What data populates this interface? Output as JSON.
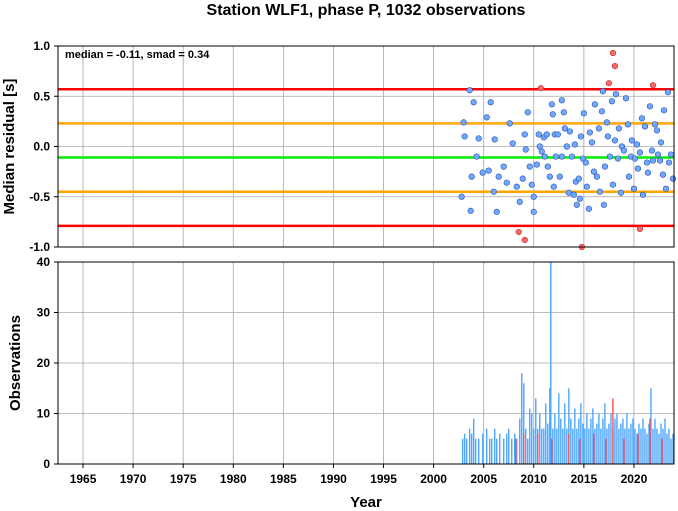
{
  "chart_data": [
    {
      "type": "scatter",
      "title": "Station WLF1, phase P, 1032 observations",
      "ylabel": "Median residual [s]",
      "annotation": "median = -0.11, smad = 0.34",
      "xlim": [
        1962.5,
        2024
      ],
      "ylim": [
        -1.0,
        1.0
      ],
      "yticks": [
        -1.0,
        -0.5,
        0.0,
        0.5,
        1.0
      ],
      "ytick_labels": [
        "-1.0",
        "-0.5",
        "0.0",
        "0.5",
        "1.0"
      ],
      "grid": true,
      "reference_lines": [
        {
          "name": "median",
          "y": -0.11,
          "color": "#00ee00"
        },
        {
          "name": "median + 1 smad",
          "y": 0.23,
          "color": "#ffa500"
        },
        {
          "name": "median - 1 smad",
          "y": -0.45,
          "color": "#ffa500"
        },
        {
          "name": "median + 2 smad",
          "y": 0.57,
          "color": "#ff0000"
        },
        {
          "name": "median - 2 smad",
          "y": -0.79,
          "color": "#ff0000"
        }
      ],
      "point_colors": {
        "within": "#6fa8ff",
        "outside": "#ff6666"
      },
      "points": [
        [
          2003.0,
          0.24
        ],
        [
          2003.1,
          0.1
        ],
        [
          2003.6,
          0.56
        ],
        [
          2003.8,
          -0.3
        ],
        [
          2004.0,
          0.44
        ],
        [
          2003.7,
          -0.64
        ],
        [
          2004.5,
          0.08
        ],
        [
          2004.9,
          -0.26
        ],
        [
          2005.3,
          0.29
        ],
        [
          2005.5,
          -0.24
        ],
        [
          2005.7,
          0.44
        ],
        [
          2006.0,
          -0.45
        ],
        [
          2006.1,
          0.07
        ],
        [
          2006.3,
          -0.65
        ],
        [
          2006.5,
          -0.3
        ],
        [
          2007.3,
          -0.36
        ],
        [
          2007.6,
          0.23
        ],
        [
          2007.9,
          0.03
        ],
        [
          2008.3,
          -0.4
        ],
        [
          2008.6,
          -0.55
        ],
        [
          2008.9,
          -0.32
        ],
        [
          2009.1,
          0.12
        ],
        [
          2009.2,
          -0.03
        ],
        [
          2009.6,
          -0.2
        ],
        [
          2009.8,
          -0.38
        ],
        [
          2010.0,
          -0.5
        ],
        [
          2010.0,
          -0.65
        ],
        [
          2010.3,
          -0.18
        ],
        [
          2010.5,
          0.12
        ],
        [
          2010.6,
          0.0
        ],
        [
          2010.8,
          -0.05
        ],
        [
          2011.0,
          0.09
        ],
        [
          2011.1,
          -0.1
        ],
        [
          2011.3,
          0.12
        ],
        [
          2011.4,
          -0.2
        ],
        [
          2011.6,
          -0.3
        ],
        [
          2011.8,
          0.42
        ],
        [
          2011.9,
          0.32
        ],
        [
          2012.1,
          0.12
        ],
        [
          2012.2,
          -0.1
        ],
        [
          2012.4,
          0.12
        ],
        [
          2012.6,
          -0.3
        ],
        [
          2012.8,
          0.46
        ],
        [
          2012.8,
          -0.1
        ],
        [
          2013.0,
          0.34
        ],
        [
          2013.1,
          0.18
        ],
        [
          2013.3,
          0.0
        ],
        [
          2013.5,
          -0.46
        ],
        [
          2013.6,
          0.15
        ],
        [
          2013.8,
          -0.1
        ],
        [
          2014.0,
          -0.48
        ],
        [
          2014.1,
          0.02
        ],
        [
          2014.2,
          -0.35
        ],
        [
          2014.3,
          -0.58
        ],
        [
          2014.5,
          -0.32
        ],
        [
          2014.6,
          -0.52
        ],
        [
          2014.7,
          0.1
        ],
        [
          2014.9,
          -0.12
        ],
        [
          2015.0,
          0.33
        ],
        [
          2015.2,
          -0.16
        ],
        [
          2015.3,
          -0.4
        ],
        [
          2015.5,
          -0.62
        ],
        [
          2015.6,
          0.14
        ],
        [
          2015.8,
          0.04
        ],
        [
          2016.0,
          -0.25
        ],
        [
          2016.1,
          0.42
        ],
        [
          2016.3,
          -0.3
        ],
        [
          2016.5,
          0.18
        ],
        [
          2016.6,
          -0.45
        ],
        [
          2016.8,
          0.35
        ],
        [
          2017.0,
          -0.58
        ],
        [
          2017.1,
          -0.2
        ],
        [
          2017.3,
          0.24
        ],
        [
          2017.4,
          0.1
        ],
        [
          2017.6,
          -0.1
        ],
        [
          2017.8,
          0.45
        ],
        [
          2017.9,
          -0.38
        ],
        [
          2018.1,
          0.06
        ],
        [
          2018.2,
          0.52
        ],
        [
          2018.4,
          -0.12
        ],
        [
          2018.5,
          0.18
        ],
        [
          2018.7,
          -0.46
        ],
        [
          2018.8,
          0.0
        ],
        [
          2019.0,
          -0.04
        ],
        [
          2019.2,
          0.48
        ],
        [
          2019.4,
          0.22
        ],
        [
          2019.5,
          -0.3
        ],
        [
          2019.7,
          -0.1
        ],
        [
          2019.8,
          0.06
        ],
        [
          2020.0,
          -0.42
        ],
        [
          2020.1,
          -0.12
        ],
        [
          2020.3,
          0.02
        ],
        [
          2020.4,
          -0.22
        ],
        [
          2020.6,
          -0.06
        ],
        [
          2020.8,
          0.28
        ],
        [
          2020.9,
          -0.48
        ],
        [
          2021.1,
          0.2
        ],
        [
          2021.3,
          -0.16
        ],
        [
          2021.4,
          -0.26
        ],
        [
          2021.6,
          0.4
        ],
        [
          2021.8,
          -0.04
        ],
        [
          2021.9,
          -0.14
        ],
        [
          2022.1,
          0.22
        ],
        [
          2022.3,
          0.16
        ],
        [
          2022.4,
          -0.08
        ],
        [
          2022.6,
          -0.14
        ],
        [
          2022.7,
          0.04
        ],
        [
          2022.9,
          -0.28
        ],
        [
          2023.0,
          0.36
        ],
        [
          2023.2,
          -0.42
        ],
        [
          2023.4,
          0.54
        ],
        [
          2023.5,
          -0.16
        ],
        [
          2023.7,
          -0.08
        ],
        [
          2023.9,
          -0.32
        ],
        [
          2002.8,
          -0.5
        ],
        [
          2004.3,
          -0.1
        ],
        [
          2007.0,
          -0.2
        ],
        [
          2009.4,
          0.34
        ],
        [
          2012.0,
          -0.4
        ],
        [
          2016.9,
          0.55
        ]
      ],
      "outliers": [
        [
          2010.7,
          0.58
        ],
        [
          2017.5,
          0.63
        ],
        [
          2017.9,
          0.93
        ],
        [
          2018.1,
          0.8
        ],
        [
          2021.9,
          0.61
        ],
        [
          2008.5,
          -0.85
        ],
        [
          2009.1,
          -0.93
        ],
        [
          2014.8,
          -1.0
        ],
        [
          2020.6,
          -0.82
        ]
      ]
    },
    {
      "type": "bar",
      "xlabel": "Year",
      "ylabel": "Observations",
      "xlim": [
        1962.5,
        2024
      ],
      "ylim": [
        0,
        40
      ],
      "xticks": [
        1965,
        1970,
        1975,
        1980,
        1985,
        1990,
        1995,
        2000,
        2005,
        2010,
        2015,
        2020
      ],
      "xtick_labels": [
        "1965",
        "1970",
        "1975",
        "1980",
        "1985",
        "1990",
        "1995",
        "2000",
        "2005",
        "2010",
        "2015",
        "2020"
      ],
      "yticks": [
        0,
        10,
        20,
        30,
        40
      ],
      "ytick_labels": [
        "0",
        "10",
        "20",
        "30",
        "40"
      ],
      "grid": true,
      "bar_colors": {
        "normal": "#4da6ff",
        "outlier": "#ff4d4d"
      },
      "bars": [
        [
          2002.9,
          5
        ],
        [
          2003.1,
          6
        ],
        [
          2003.3,
          5
        ],
        [
          2003.6,
          7
        ],
        [
          2003.8,
          6
        ],
        [
          2004.0,
          9
        ],
        [
          2004.2,
          5
        ],
        [
          2004.5,
          5
        ],
        [
          2004.9,
          6
        ],
        [
          2005.3,
          7
        ],
        [
          2005.6,
          5
        ],
        [
          2005.8,
          5
        ],
        [
          2006.1,
          7
        ],
        [
          2006.3,
          5
        ],
        [
          2006.6,
          6
        ],
        [
          2007.0,
          5
        ],
        [
          2007.3,
          6
        ],
        [
          2007.5,
          7
        ],
        [
          2007.8,
          5
        ],
        [
          2008.1,
          6
        ],
        [
          2008.3,
          5
        ],
        [
          2008.6,
          9
        ],
        [
          2008.8,
          18
        ],
        [
          2009.0,
          16
        ],
        [
          2009.2,
          7
        ],
        [
          2009.4,
          5
        ],
        [
          2009.6,
          11
        ],
        [
          2009.8,
          10
        ],
        [
          2010.0,
          7
        ],
        [
          2010.2,
          13
        ],
        [
          2010.4,
          7
        ],
        [
          2010.6,
          10
        ],
        [
          2010.8,
          7
        ],
        [
          2011.0,
          7
        ],
        [
          2011.2,
          12
        ],
        [
          2011.4,
          8
        ],
        [
          2011.6,
          15
        ],
        [
          2011.7,
          40
        ],
        [
          2011.9,
          7
        ],
        [
          2012.1,
          10
        ],
        [
          2012.3,
          7
        ],
        [
          2012.5,
          14
        ],
        [
          2012.7,
          9
        ],
        [
          2012.9,
          7
        ],
        [
          2013.1,
          12
        ],
        [
          2013.3,
          7
        ],
        [
          2013.5,
          15
        ],
        [
          2013.7,
          9
        ],
        [
          2013.9,
          7
        ],
        [
          2014.1,
          11
        ],
        [
          2014.3,
          7
        ],
        [
          2014.5,
          9
        ],
        [
          2014.7,
          12
        ],
        [
          2014.9,
          8
        ],
        [
          2015.1,
          7
        ],
        [
          2015.3,
          10
        ],
        [
          2015.5,
          7
        ],
        [
          2015.7,
          9
        ],
        [
          2015.9,
          11
        ],
        [
          2016.1,
          7
        ],
        [
          2016.3,
          8
        ],
        [
          2016.5,
          10
        ],
        [
          2016.7,
          7
        ],
        [
          2016.9,
          9
        ],
        [
          2017.1,
          12
        ],
        [
          2017.3,
          7
        ],
        [
          2017.5,
          8
        ],
        [
          2017.7,
          10
        ],
        [
          2017.9,
          7
        ],
        [
          2018.1,
          9
        ],
        [
          2018.3,
          10
        ],
        [
          2018.5,
          7
        ],
        [
          2018.7,
          8
        ],
        [
          2018.9,
          9
        ],
        [
          2019.1,
          7
        ],
        [
          2019.3,
          10
        ],
        [
          2019.5,
          7
        ],
        [
          2019.7,
          8
        ],
        [
          2019.9,
          9
        ],
        [
          2020.1,
          7
        ],
        [
          2020.3,
          6
        ],
        [
          2020.5,
          8
        ],
        [
          2020.7,
          7
        ],
        [
          2020.9,
          9
        ],
        [
          2021.1,
          7
        ],
        [
          2021.3,
          6
        ],
        [
          2021.5,
          8
        ],
        [
          2021.7,
          15
        ],
        [
          2021.9,
          7
        ],
        [
          2022.1,
          9
        ],
        [
          2022.3,
          7
        ],
        [
          2022.5,
          6
        ],
        [
          2022.7,
          8
        ],
        [
          2022.9,
          7
        ],
        [
          2023.1,
          9
        ],
        [
          2023.3,
          6
        ],
        [
          2023.5,
          7
        ],
        [
          2023.7,
          5
        ],
        [
          2023.9,
          6
        ]
      ],
      "outlier_bars": [
        [
          2008.2,
          5
        ],
        [
          2009.0,
          6
        ],
        [
          2010.4,
          6
        ],
        [
          2011.8,
          5
        ],
        [
          2013.5,
          6
        ],
        [
          2014.6,
          5
        ],
        [
          2016.0,
          6
        ],
        [
          2017.2,
          5
        ],
        [
          2017.9,
          13
        ],
        [
          2019.0,
          5
        ],
        [
          2020.4,
          6
        ],
        [
          2021.6,
          9
        ],
        [
          2022.8,
          5
        ]
      ]
    }
  ]
}
